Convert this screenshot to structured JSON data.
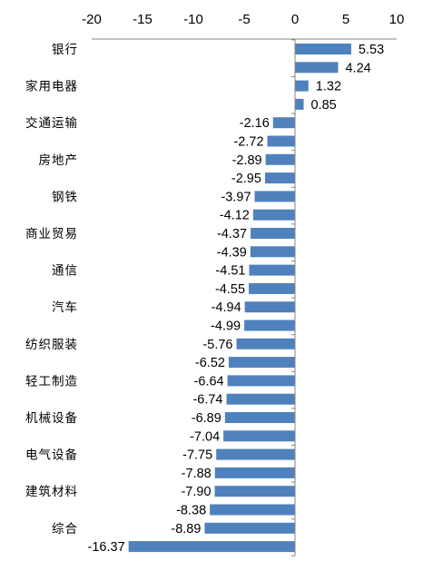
{
  "chart_data": {
    "type": "bar",
    "orientation": "horizontal",
    "title": "",
    "xlabel": "",
    "ylabel": "",
    "xlim": [
      -20,
      10
    ],
    "x_ticks": [
      "-20",
      "-15",
      "-10",
      "-5",
      "0",
      "5",
      "10"
    ],
    "x_tick_values": [
      -20,
      -15,
      -10,
      -5,
      0,
      5,
      10
    ],
    "axis_position": "top",
    "grid": false,
    "bar_color": "#4F81BD",
    "categories": [
      "银行",
      "",
      "家用电器",
      "",
      "交通运输",
      "",
      "房地产",
      "",
      "钢铁",
      "",
      "商业贸易",
      "",
      "通信",
      "",
      "汽车",
      "",
      "纺织服装",
      "",
      "轻工制造",
      "",
      "机械设备",
      "",
      "电气设备",
      "",
      "建筑材料",
      "",
      "综合",
      ""
    ],
    "values": [
      5.53,
      4.24,
      1.32,
      0.85,
      -2.16,
      -2.72,
      -2.89,
      -2.95,
      -3.97,
      -4.12,
      -4.37,
      -4.39,
      -4.51,
      -4.55,
      -4.94,
      -4.99,
      -5.76,
      -6.52,
      -6.64,
      -6.74,
      -6.89,
      -7.04,
      -7.75,
      -7.88,
      -7.9,
      -8.38,
      -8.89,
      -16.37
    ],
    "data_labels": [
      "5.53",
      "4.24",
      "1.32",
      "0.85",
      "-2.16",
      "-2.72",
      "-2.89",
      "-2.95",
      "-3.97",
      "-4.12",
      "-4.37",
      "-4.39",
      "-4.51",
      "-4.55",
      "-4.94",
      "-4.99",
      "-5.76",
      "-6.52",
      "-6.64",
      "-6.74",
      "-6.89",
      "-7.04",
      "-7.75",
      "-7.88",
      "-7.90",
      "-8.38",
      "-8.89",
      "-16.37"
    ]
  }
}
